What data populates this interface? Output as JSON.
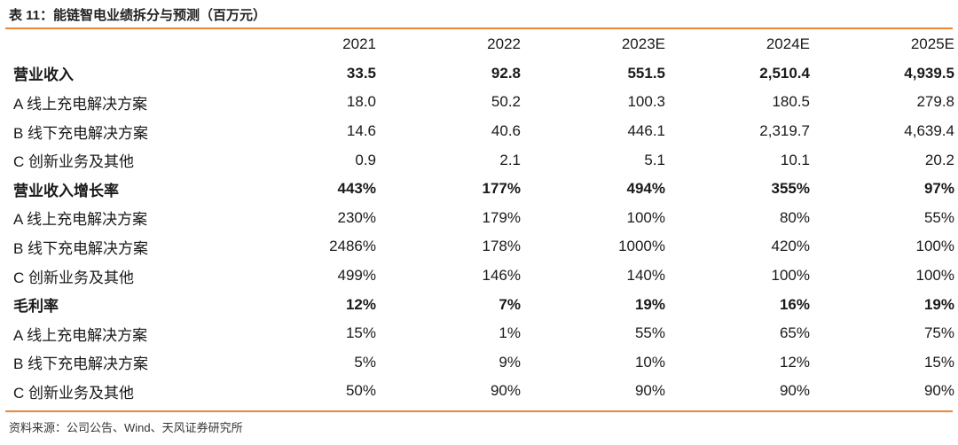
{
  "caption": "表 11：能链智电业绩拆分与预测（百万元）",
  "source": "资料来源：公司公告、Wind、天风证券研究所",
  "columns": [
    "",
    "2021",
    "2022",
    "2023E",
    "2024E",
    "2025E"
  ],
  "rows": [
    {
      "label": "营业收入",
      "section": true,
      "values": [
        "33.5",
        "92.8",
        "551.5",
        "2,510.4",
        "4,939.5"
      ]
    },
    {
      "label": "A  线上充电解决方案",
      "section": false,
      "values": [
        "18.0",
        "50.2",
        "100.3",
        "180.5",
        "279.8"
      ]
    },
    {
      "label": "B  线下充电解决方案",
      "section": false,
      "values": [
        "14.6",
        "40.6",
        "446.1",
        "2,319.7",
        "4,639.4"
      ]
    },
    {
      "label": "C  创新业务及其他",
      "section": false,
      "values": [
        "0.9",
        "2.1",
        "5.1",
        "10.1",
        "20.2"
      ]
    },
    {
      "label": "营业收入增长率",
      "section": true,
      "values": [
        "443%",
        "177%",
        "494%",
        "355%",
        "97%"
      ]
    },
    {
      "label": "A  线上充电解决方案",
      "section": false,
      "values": [
        "230%",
        "179%",
        "100%",
        "80%",
        "55%"
      ]
    },
    {
      "label": "B  线下充电解决方案",
      "section": false,
      "values": [
        "2486%",
        "178%",
        "1000%",
        "420%",
        "100%"
      ]
    },
    {
      "label": "C  创新业务及其他",
      "section": false,
      "values": [
        "499%",
        "146%",
        "140%",
        "100%",
        "100%"
      ]
    },
    {
      "label": "毛利率",
      "section": true,
      "values": [
        "12%",
        "7%",
        "19%",
        "16%",
        "19%"
      ]
    },
    {
      "label": "A  线上充电解决方案",
      "section": false,
      "values": [
        "15%",
        "1%",
        "55%",
        "65%",
        "75%"
      ]
    },
    {
      "label": "B  线下充电解决方案",
      "section": false,
      "values": [
        "5%",
        "9%",
        "10%",
        "12%",
        "15%"
      ]
    },
    {
      "label": "C  创新业务及其他",
      "section": false,
      "values": [
        "50%",
        "90%",
        "90%",
        "90%",
        "90%"
      ]
    }
  ],
  "colors": {
    "rule": "#e8873a",
    "text": "#1a1a1a"
  }
}
